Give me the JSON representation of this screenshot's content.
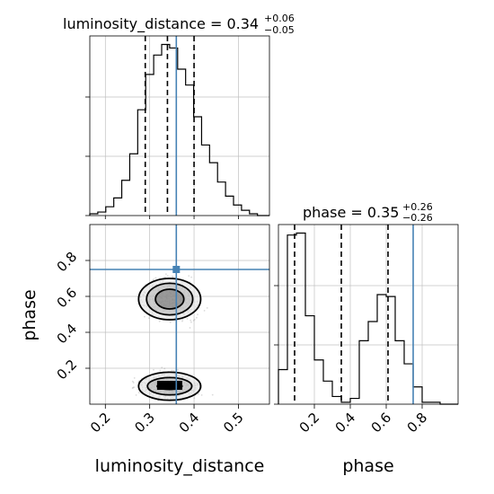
{
  "chart_data": {
    "type": "corner",
    "parameters": [
      "luminosity_distance",
      "phase"
    ],
    "axis_labels": {
      "x_bottom_left": "luminosity_distance",
      "x_bottom_right": "phase",
      "y_left": "phase"
    },
    "titles": [
      {
        "text": "luminosity_distance = 0.34",
        "upper": "+0.06",
        "lower": "−0.05"
      },
      {
        "text": "phase = 0.35",
        "upper": "+0.26",
        "lower": "−0.26"
      }
    ],
    "ranges": {
      "luminosity_distance": [
        0.165,
        0.57
      ],
      "phase": [
        0.0,
        1.0
      ]
    },
    "ticks": {
      "luminosity_distance": [
        "0.2",
        "0.3",
        "0.4",
        "0.5"
      ],
      "phase": [
        "0.2",
        "0.4",
        "0.6",
        "0.8"
      ]
    },
    "truths": {
      "luminosity_distance": 0.36,
      "phase": 0.75
    },
    "quantiles": {
      "luminosity_distance": [
        0.29,
        0.34,
        0.4
      ],
      "phase": [
        0.09,
        0.35,
        0.61
      ]
    },
    "hist_luminosity_distance": {
      "edges": [
        0.165,
        0.183,
        0.201,
        0.219,
        0.237,
        0.255,
        0.273,
        0.291,
        0.309,
        0.327,
        0.345,
        0.363,
        0.381,
        0.399,
        0.417,
        0.435,
        0.453,
        0.471,
        0.489,
        0.507,
        0.525,
        0.543,
        0.57
      ],
      "counts": [
        1,
        2,
        5,
        10,
        20,
        35,
        60,
        80,
        91,
        97,
        95,
        83,
        74,
        56,
        40,
        30,
        19,
        11,
        6,
        3,
        1,
        0
      ]
    },
    "hist_phase": {
      "edges": [
        0.0,
        0.05,
        0.1,
        0.15,
        0.2,
        0.25,
        0.3,
        0.35,
        0.4,
        0.45,
        0.5,
        0.55,
        0.6,
        0.65,
        0.7,
        0.75,
        0.8,
        0.85,
        0.9,
        0.95,
        1.0
      ],
      "counts": [
        18,
        88,
        89,
        46,
        23,
        12,
        4,
        1,
        3,
        33,
        43,
        57,
        56,
        33,
        21,
        9,
        1,
        1,
        0,
        0
      ]
    },
    "contours_2d": [
      {
        "center": [
          0.345,
          0.585
        ],
        "radii": [
          [
            0.032,
            0.055
          ],
          [
            0.052,
            0.088
          ],
          [
            0.07,
            0.115
          ]
        ]
      },
      {
        "center": [
          0.345,
          0.1
        ],
        "radii": [
          [
            0.028,
            0.018
          ],
          [
            0.05,
            0.048
          ],
          [
            0.07,
            0.078
          ]
        ]
      }
    ],
    "colors": {
      "truth": "#4682b4",
      "hist": "#000000",
      "grid": "#c0c0c0",
      "scatter": "#999999"
    }
  }
}
